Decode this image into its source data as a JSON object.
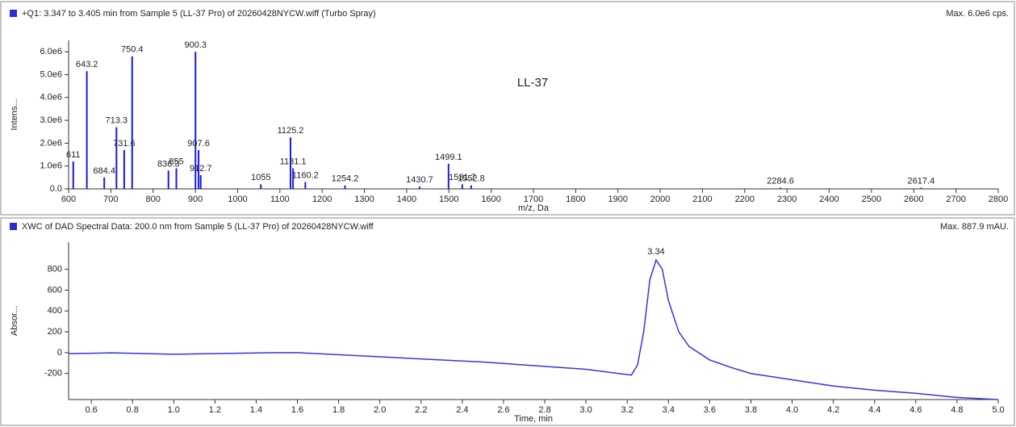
{
  "chart_data": [
    {
      "type": "spectrum",
      "title": "+Q1: 3.347 to 3.405 min from Sample 5 (LL-37 Pro) of 20260428NYCW.wiff (Turbo Spray)",
      "subtitle": "Max. 6.0e6 cps.",
      "annotation": "LL-37",
      "x_label": "m/z, Da",
      "y_label": "Intens...",
      "color": "#1a1adb",
      "x": [
        611.0,
        643.2,
        684.4,
        713.3,
        731.6,
        750.4,
        836.3,
        855.0,
        900.3,
        907.6,
        912.7,
        1055.0,
        1125.2,
        1131.1,
        1160.2,
        1254.2,
        1430.7,
        1499.1,
        1531.7,
        1552.8,
        2284.6,
        2617.4
      ],
      "values": [
        1200000,
        5150000,
        500000,
        2700000,
        1700000,
        5800000,
        800000,
        900000,
        6000000,
        1700000,
        600000,
        200000,
        2250000,
        900000,
        300000,
        150000,
        100000,
        1100000,
        200000,
        150000,
        50000,
        50000
      ],
      "xlim": [
        600,
        2800
      ],
      "ylim": [
        0,
        6500000
      ],
      "xticks": [
        600,
        700,
        800,
        900,
        1000,
        1100,
        1200,
        1300,
        1400,
        1500,
        1600,
        1700,
        1800,
        1900,
        2000,
        2100,
        2200,
        2300,
        2400,
        2500,
        2600,
        2700,
        2800
      ],
      "yticks": [
        {
          "value": 0,
          "label": "0.0"
        },
        {
          "value": 1000000,
          "label": "1.0e6"
        },
        {
          "value": 2000000,
          "label": "2.0e6"
        },
        {
          "value": 3000000,
          "label": "3.0e6"
        },
        {
          "value": 4000000,
          "label": "4.0e6"
        },
        {
          "value": 5000000,
          "label": "5.0e6"
        },
        {
          "value": 6000000,
          "label": "6.0e6"
        }
      ]
    },
    {
      "type": "line",
      "title": "XWC of DAD Spectral Data: 200.0 nm from Sample 5 (LL-37 Pro) of 20260428NYCW.wiff",
      "subtitle": "Max. 887.9 mAU.",
      "x_label": "Time, min",
      "y_label": "Absor...",
      "color": "#3434e8",
      "x": [
        0.49,
        0.7,
        1.0,
        1.5,
        1.6,
        2.0,
        2.5,
        3.0,
        3.2,
        3.22,
        3.25,
        3.28,
        3.31,
        3.34,
        3.37,
        3.4,
        3.45,
        3.5,
        3.6,
        3.7,
        3.8,
        4.0,
        4.2,
        4.4,
        4.6,
        4.8,
        5.0
      ],
      "values": [
        -10,
        -2,
        -15,
        0,
        0,
        -40,
        -90,
        -160,
        -210,
        -215,
        -120,
        200,
        700,
        887.9,
        800,
        500,
        200,
        60,
        -70,
        -140,
        -200,
        -260,
        -320,
        -360,
        -390,
        -430,
        -450
      ],
      "peak_labels": [
        3.34
      ],
      "xlim": [
        0.49,
        5.0
      ],
      "ylim": [
        -450,
        1060
      ],
      "xticks": [
        0.6,
        0.8,
        {
          "value": 1,
          "label": "1.0"
        },
        1.2,
        1.4,
        1.6,
        1.8,
        {
          "value": 2,
          "label": "2.0"
        },
        2.2,
        2.4,
        2.6,
        2.8,
        {
          "value": 3,
          "label": "3.0"
        },
        3.2,
        3.4,
        3.6,
        3.8,
        {
          "value": 4,
          "label": "4.0"
        },
        4.2,
        4.4,
        4.6,
        4.8,
        {
          "value": 5,
          "label": "5.0"
        }
      ],
      "yticks": [
        -200,
        0,
        200,
        400,
        600,
        800
      ]
    }
  ]
}
